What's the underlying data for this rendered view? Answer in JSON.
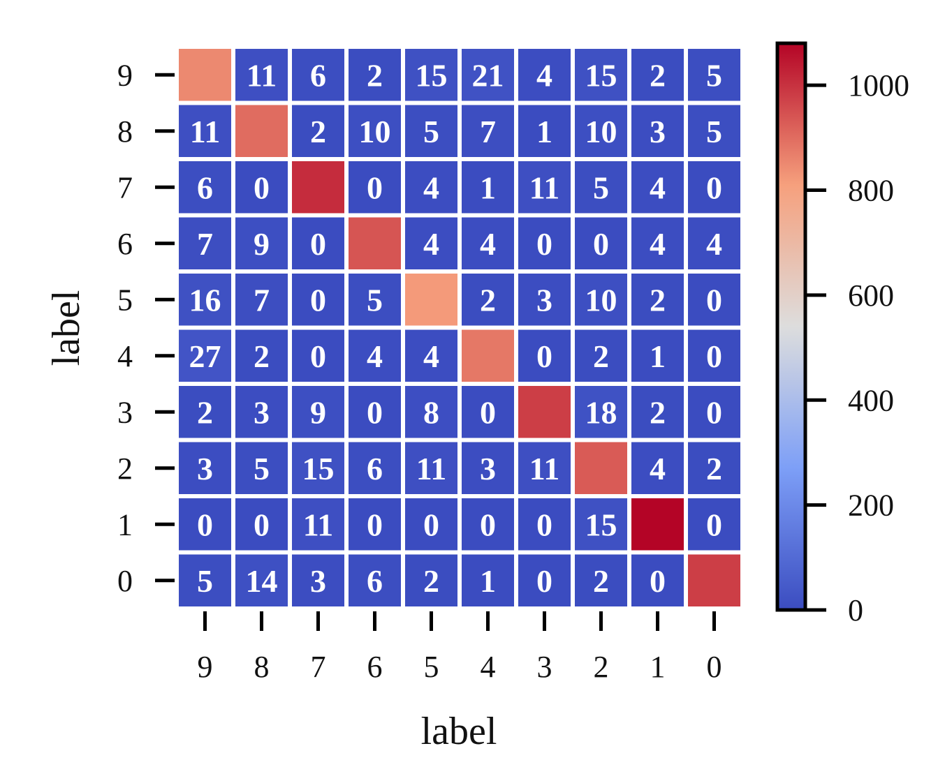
{
  "chart_data": {
    "type": "heatmap",
    "title": "",
    "xlabel": "label",
    "ylabel": "label",
    "x_categories": [
      "9",
      "8",
      "7",
      "6",
      "5",
      "4",
      "3",
      "2",
      "1",
      "0"
    ],
    "y_categories_top_to_bottom": [
      "9",
      "8",
      "7",
      "6",
      "5",
      "4",
      "3",
      "2",
      "1",
      "0"
    ],
    "values": [
      [
        850,
        11,
        6,
        2,
        15,
        21,
        4,
        15,
        2,
        5
      ],
      [
        11,
        900,
        2,
        10,
        5,
        7,
        1,
        10,
        3,
        5
      ],
      [
        6,
        0,
        1010,
        0,
        4,
        1,
        11,
        5,
        4,
        0
      ],
      [
        7,
        9,
        0,
        940,
        4,
        4,
        0,
        0,
        4,
        4
      ],
      [
        16,
        7,
        0,
        5,
        820,
        2,
        3,
        10,
        2,
        0
      ],
      [
        27,
        2,
        0,
        4,
        4,
        880,
        0,
        2,
        1,
        0
      ],
      [
        2,
        3,
        9,
        0,
        8,
        0,
        980,
        18,
        2,
        0
      ],
      [
        3,
        5,
        15,
        6,
        11,
        3,
        11,
        930,
        4,
        2
      ],
      [
        0,
        0,
        11,
        0,
        0,
        0,
        0,
        15,
        1080,
        0
      ],
      [
        5,
        14,
        3,
        6,
        2,
        1,
        0,
        2,
        0,
        980
      ]
    ],
    "annotations": [
      [
        "",
        "11",
        "6",
        "2",
        "15",
        "21",
        "4",
        "15",
        "2",
        "5"
      ],
      [
        "11",
        "",
        "2",
        "10",
        "5",
        "7",
        "1",
        "10",
        "3",
        "5"
      ],
      [
        "6",
        "0",
        "",
        "0",
        "4",
        "1",
        "11",
        "5",
        "4",
        "0"
      ],
      [
        "7",
        "9",
        "0",
        "",
        "4",
        "4",
        "0",
        "0",
        "4",
        "4"
      ],
      [
        "16",
        "7",
        "0",
        "5",
        "",
        "2",
        "3",
        "10",
        "2",
        "0"
      ],
      [
        "27",
        "2",
        "0",
        "4",
        "4",
        "",
        "0",
        "2",
        "1",
        "0"
      ],
      [
        "2",
        "3",
        "9",
        "0",
        "8",
        "0",
        "",
        "18",
        "2",
        "0"
      ],
      [
        "3",
        "5",
        "15",
        "6",
        "11",
        "3",
        "11",
        "",
        "4",
        "2"
      ],
      [
        "0",
        "0",
        "11",
        "0",
        "0",
        "0",
        "0",
        "15",
        "",
        "0"
      ],
      [
        "5",
        "14",
        "3",
        "6",
        "2",
        "1",
        "0",
        "2",
        "0",
        ""
      ]
    ],
    "colormap": "coolwarm",
    "color_range": [
      0,
      1080
    ],
    "colorbar_ticks": [
      "0",
      "200",
      "400",
      "600",
      "800",
      "1000"
    ],
    "colorbar_tick_values": [
      0,
      200,
      400,
      600,
      800,
      1000
    ],
    "colors": {
      "low": "#3b4cc0",
      "mid": "#dddddd",
      "high": "#b40426",
      "cell_border": "#ffffff",
      "annotation_text": "#ffffff",
      "axis": "#000000"
    },
    "grid": false,
    "legend": "colorbar-right"
  }
}
